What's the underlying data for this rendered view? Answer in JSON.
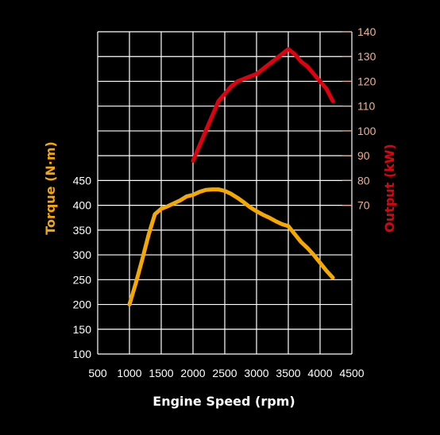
{
  "chart_data": {
    "type": "line",
    "xlabel": "Engine Speed (rpm)",
    "ylabel_left": "Torque (N·m)",
    "ylabel_right": "Output (kW)",
    "x_ticks": [
      "500",
      "1000",
      "1500",
      "2000",
      "2500",
      "3000",
      "3500",
      "4000",
      "4500"
    ],
    "y_left_ticks": [
      "100",
      "150",
      "200",
      "250",
      "300",
      "350",
      "400",
      "450"
    ],
    "y_right_ticks": [
      "70",
      "80",
      "90",
      "100",
      "110",
      "120",
      "130",
      "140"
    ],
    "xlim": [
      500,
      4500
    ],
    "ylim_left": [
      100,
      750
    ],
    "ylim_right": [
      10,
      140
    ],
    "grid": true,
    "colors": {
      "torque": "#f5a800",
      "output": "#e0000f",
      "grid": "#ffffff",
      "background": "#000000",
      "right_tick_text": "#f0b090"
    },
    "series": [
      {
        "axis": "left",
        "x": [
          1000,
          1100,
          1200,
          1300,
          1400,
          1500,
          1600,
          1700,
          1800,
          1900,
          2000,
          2100,
          2200,
          2300,
          2400,
          2500,
          2600,
          2700,
          2800,
          2900,
          3000,
          3100,
          3200,
          3300,
          3400,
          3500,
          3600,
          3700,
          3800,
          3900,
          4000,
          4100,
          4200
        ],
        "y": [
          200,
          243,
          290,
          340,
          382,
          393,
          398,
          404,
          410,
          418,
          421,
          427,
          431,
          432,
          432,
          429,
          423,
          415,
          406,
          396,
          388,
          381,
          375,
          368,
          362,
          358,
          342,
          326,
          314,
          300,
          284,
          268,
          254
        ]
      },
      {
        "axis": "right",
        "x": [
          2000,
          2100,
          2200,
          2300,
          2400,
          2500,
          2600,
          2700,
          2800,
          2900,
          3000,
          3100,
          3200,
          3300,
          3400,
          3500,
          3600,
          3700,
          3800,
          3900,
          4000,
          4100,
          4200
        ],
        "y": [
          88,
          94,
          100,
          106,
          112,
          115,
          118,
          120,
          121,
          122,
          123,
          125,
          127,
          129,
          131,
          133,
          131,
          128,
          126,
          123,
          120,
          117,
          112
        ]
      }
    ]
  }
}
